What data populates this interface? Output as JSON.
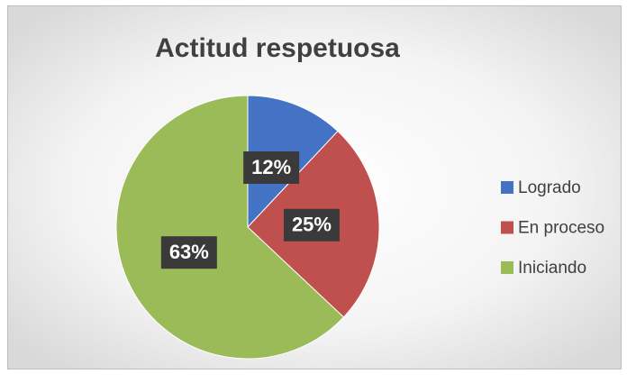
{
  "chart_data": {
    "type": "pie",
    "title": "Actitud respetuosa",
    "categories": [
      "Logrado",
      "En proceso",
      "Iniciando"
    ],
    "values": [
      12,
      25,
      63
    ],
    "value_labels": [
      "12%",
      "25%",
      "63%"
    ],
    "colors": [
      "#4472c4",
      "#c0504d",
      "#9bbb59"
    ],
    "legend": "right"
  }
}
